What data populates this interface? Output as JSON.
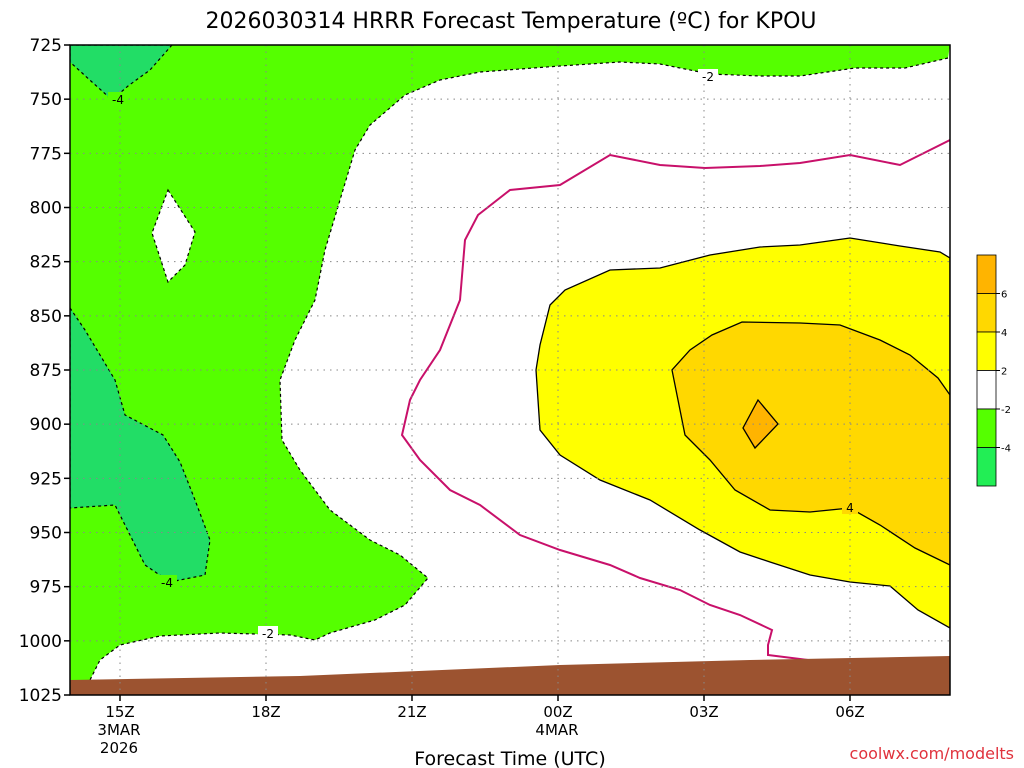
{
  "chart_data": {
    "type": "contour",
    "title": "2026030314 HRRR Forecast Temperature (ºC) for KPOU",
    "xlabel": "Forecast Time (UTC)",
    "ylabel": "",
    "credit": "coolwx.com/modelts",
    "y_axis": {
      "unit": "hPa",
      "inverted": true,
      "range": [
        1025,
        725
      ],
      "ticks": [
        "725",
        "750",
        "775",
        "800",
        "825",
        "850",
        "875",
        "900",
        "925",
        "950",
        "975",
        "1000",
        "1025"
      ]
    },
    "x_axis": {
      "ticks": [
        {
          "label": "15Z",
          "sub": [
            "3MAR",
            "2026"
          ]
        },
        {
          "label": "18Z",
          "sub": []
        },
        {
          "label": "21Z",
          "sub": []
        },
        {
          "label": "00Z",
          "sub": [
            "4MAR"
          ]
        },
        {
          "label": "03Z",
          "sub": []
        },
        {
          "label": "06Z",
          "sub": []
        }
      ]
    },
    "contour_labels": [
      "-4",
      "-2",
      "-4",
      "-2",
      "4"
    ],
    "colorbar": {
      "levels": [
        "6",
        "4",
        "2",
        "-2",
        "-4"
      ],
      "colors": [
        "#ffb400",
        "#ffd800",
        "#ffff00",
        "#ffffff",
        "#55ff00",
        "#22ee55"
      ]
    },
    "colors": {
      "cold_very": "#22dd66",
      "cold": "#55ff00",
      "neutral": "#ffffff",
      "warm": "#ffff00",
      "warmer": "#ffd800",
      "warmest": "#ffb400",
      "zero_line": "#c8106a",
      "ground": "#9c5330"
    }
  }
}
